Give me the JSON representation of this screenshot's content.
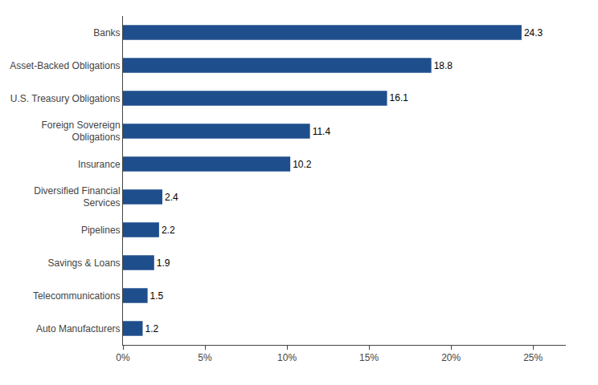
{
  "chart_data": {
    "type": "bar",
    "orientation": "horizontal",
    "categories": [
      "Auto Manufacturers",
      "Telecommunications",
      "Savings & Loans",
      "Pipelines",
      "Diversified Financial\nServices",
      "Insurance",
      "Foreign Sovereign\nObligations",
      "U.S. Treasury Obligations",
      "Asset-Backed Obligations",
      "Banks"
    ],
    "values": [
      1.2,
      1.5,
      1.9,
      2.2,
      2.4,
      10.2,
      11.4,
      16.1,
      18.8,
      24.3
    ],
    "color": "#1F4E8C",
    "xlim": [
      0,
      27
    ],
    "xticks": [
      {
        "value": 0,
        "label": "0%"
      },
      {
        "value": 5,
        "label": "5%"
      },
      {
        "value": 10,
        "label": "10%"
      },
      {
        "value": 15,
        "label": "15%"
      },
      {
        "value": 20,
        "label": "20%"
      },
      {
        "value": 25,
        "label": "25%"
      }
    ],
    "grid": false,
    "data_labels": true
  }
}
